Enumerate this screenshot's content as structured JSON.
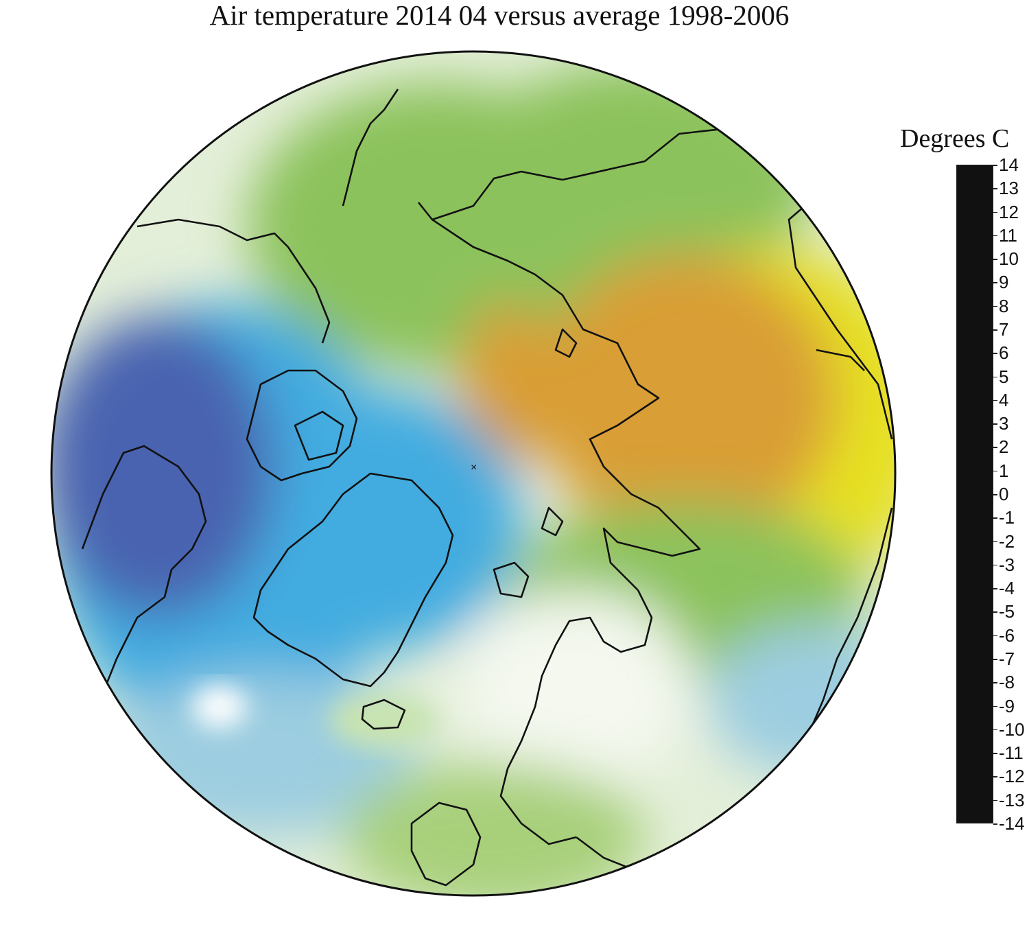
{
  "title": "Air temperature 2014 04 versus average 1998-2006",
  "legend": {
    "title": "Degrees C",
    "min": -14,
    "max": 14,
    "ticks": [
      "14",
      "13",
      "12",
      "11",
      "10",
      "9",
      "8",
      "7",
      "6",
      "5",
      "4",
      "3",
      "2",
      "1",
      "0",
      "-1",
      "-2",
      "-3",
      "-4",
      "-5",
      "-6",
      "-7",
      "-8",
      "-9",
      "-10",
      "-11",
      "-12",
      "-13",
      "-14"
    ]
  },
  "colors": {
    "scale": [
      {
        "value": -14,
        "color": "#111111"
      },
      {
        "value": -13,
        "color": "#1b1431"
      },
      {
        "value": -12,
        "color": "#2a1a63"
      },
      {
        "value": -11,
        "color": "#33207a"
      },
      {
        "value": -10,
        "color": "#3e2b8e"
      },
      {
        "value": -9,
        "color": "#4a3a9c"
      },
      {
        "value": -8,
        "color": "#5446a6"
      },
      {
        "value": -7,
        "color": "#4c55a8"
      },
      {
        "value": -6,
        "color": "#4862b0"
      },
      {
        "value": -5,
        "color": "#4571ba"
      },
      {
        "value": -4,
        "color": "#4784c8"
      },
      {
        "value": -3,
        "color": "#3c98d4"
      },
      {
        "value": -2,
        "color": "#42ace0"
      },
      {
        "value": -1,
        "color": "#9ccde0"
      },
      {
        "value": 0,
        "color": "#ffffff"
      },
      {
        "value": 1,
        "color": "#c9e4b0"
      },
      {
        "value": 2,
        "color": "#8cc25c"
      },
      {
        "value": 3,
        "color": "#b5cf3a"
      },
      {
        "value": 4,
        "color": "#e6e020"
      },
      {
        "value": 5,
        "color": "#e9c62a"
      },
      {
        "value": 6,
        "color": "#d99e36"
      },
      {
        "value": 7,
        "color": "#d88a3c"
      },
      {
        "value": 8,
        "color": "#d96a38"
      },
      {
        "value": 9,
        "color": "#da4a30"
      },
      {
        "value": 10,
        "color": "#e0382c"
      },
      {
        "value": 11,
        "color": "#e42e38"
      },
      {
        "value": 12,
        "color": "#e82a6a"
      },
      {
        "value": 13,
        "color": "#d94a96"
      },
      {
        "value": 14,
        "color": "#c75aa6"
      }
    ],
    "coastline": "#111111"
  }
}
